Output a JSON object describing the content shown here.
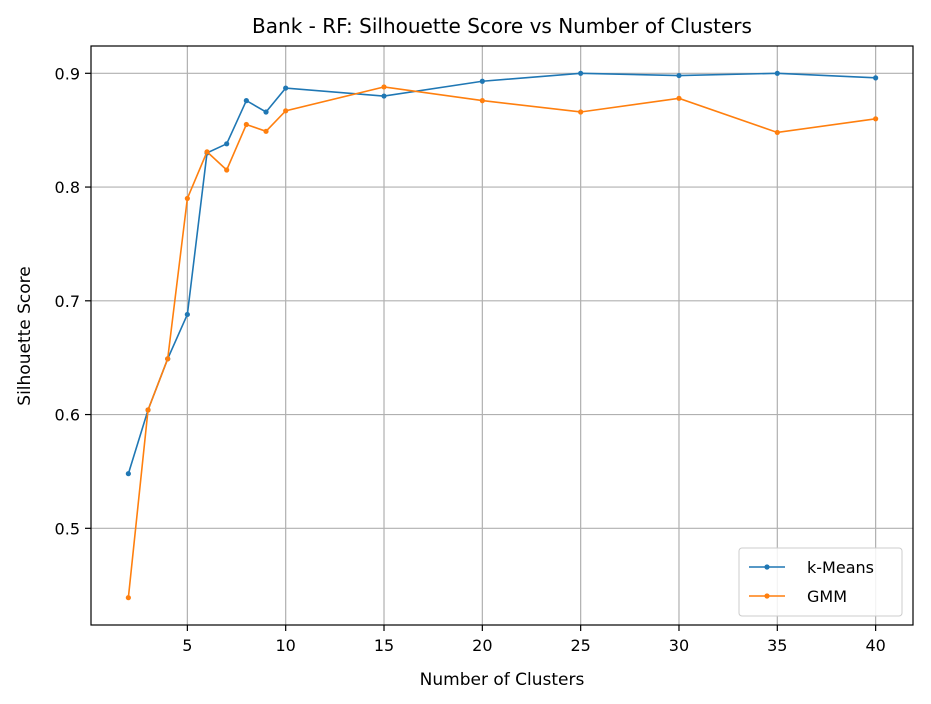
{
  "chart_data": {
    "type": "line",
    "title": "Bank - RF: Silhouette Score vs Number of Clusters",
    "xlabel": "Number of Clusters",
    "ylabel": "Silhouette Score",
    "xlim": [
      0.1,
      41.9
    ],
    "ylim": [
      0.415,
      0.924
    ],
    "xticks": [
      5,
      10,
      15,
      20,
      25,
      30,
      35,
      40
    ],
    "yticks": [
      0.5,
      0.6,
      0.7,
      0.8,
      0.9
    ],
    "xtick_labels": [
      "5",
      "10",
      "15",
      "20",
      "25",
      "30",
      "35",
      "40"
    ],
    "ytick_labels": [
      "0.5",
      "0.6",
      "0.7",
      "0.8",
      "0.9"
    ],
    "grid": true,
    "legend_position": "bottom-right",
    "series": [
      {
        "name": "k-Means",
        "color": "#1f77b4",
        "x": [
          2,
          3,
          4,
          5,
          6,
          7,
          8,
          9,
          10,
          15,
          20,
          25,
          30,
          35,
          40
        ],
        "y": [
          0.548,
          0.604,
          0.649,
          0.688,
          0.83,
          0.838,
          0.876,
          0.866,
          0.887,
          0.88,
          0.893,
          0.9,
          0.898,
          0.9,
          0.896
        ]
      },
      {
        "name": "GMM",
        "color": "#ff7f0e",
        "x": [
          2,
          3,
          4,
          5,
          6,
          7,
          8,
          9,
          10,
          15,
          20,
          25,
          30,
          35,
          40
        ],
        "y": [
          0.439,
          0.604,
          0.649,
          0.79,
          0.831,
          0.815,
          0.855,
          0.849,
          0.867,
          0.888,
          0.876,
          0.866,
          0.878,
          0.848,
          0.86
        ]
      }
    ]
  }
}
